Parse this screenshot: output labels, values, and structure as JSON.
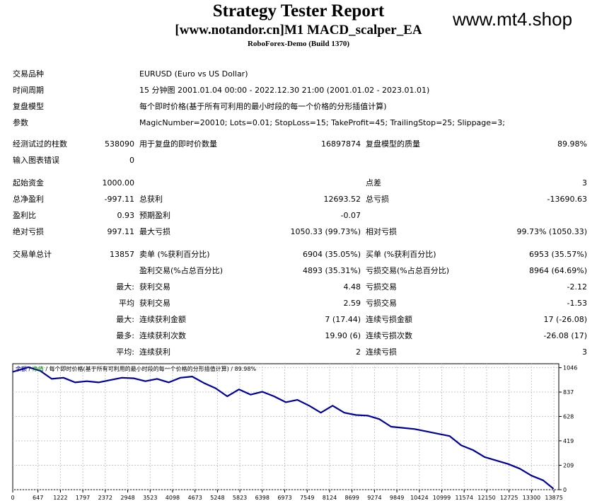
{
  "header": {
    "title": "Strategy Tester Report",
    "subtitle": "[www.notandor.cn]M1 MACD_scalper_EA",
    "server": "RoboForex-Demo (Build 1370)",
    "watermark": "www.mt4.shop"
  },
  "info": {
    "symbol_label": "交易品种",
    "symbol_value": "EURUSD (Euro vs US Dollar)",
    "period_label": "时间周期",
    "period_value": "15 分钟图 2001.01.04 00:00 - 2022.12.30 21:00 (2001.01.02 - 2023.01.01)",
    "model_label": "复盘模型",
    "model_value": "每个即时价格(基于所有可利用的最小时段的每一个价格的分形插值计算)",
    "params_label": "参数",
    "params_value": "MagicNumber=20010; Lots=0.01; StopLoss=15; TakeProfit=45; TrailingStop=25; Slippage=3;"
  },
  "bars": {
    "bars_label": "经测试过的柱数",
    "bars_value": "538090",
    "ticks_label": "用于复盘的即时价数量",
    "ticks_value": "16897874",
    "quality_label": "复盘模型的质量",
    "quality_value": "89.98%",
    "errors_label": "输入图表错误",
    "errors_value": "0"
  },
  "results": {
    "deposit_label": "起始资金",
    "deposit_value": "1000.00",
    "spread_label": "点差",
    "spread_value": "3",
    "net_label": "总净盈利",
    "net_value": "-997.11",
    "gross_profit_label": "总获利",
    "gross_profit_value": "12693.52",
    "gross_loss_label": "总亏损",
    "gross_loss_value": "-13690.63",
    "pf_label": "盈利比",
    "pf_value": "0.93",
    "payoff_label": "预期盈利",
    "payoff_value": "-0.07",
    "abs_dd_label": "绝对亏损",
    "abs_dd_value": "997.11",
    "max_dd_label": "最大亏损",
    "max_dd_value": "1050.33 (99.73%)",
    "rel_dd_label": "相对亏损",
    "rel_dd_value": "99.73% (1050.33)"
  },
  "trades": {
    "total_label": "交易单总计",
    "total_value": "13857",
    "short_label": "卖单 (%获利百分比)",
    "short_value": "6904 (35.05%)",
    "long_label": "买单 (%获利百分比)",
    "long_value": "6953 (35.57%)",
    "profit_trades_label": "盈利交易(%占总百分比)",
    "profit_trades_value": "4893 (35.31%)",
    "loss_trades_label": "亏损交易(%占总百分比)",
    "loss_trades_value": "8964 (64.69%)",
    "largest_label": "最大:",
    "largest_profit_label": "获利交易",
    "largest_profit_value": "4.48",
    "largest_loss_label": "亏损交易",
    "largest_loss_value": "-2.12",
    "average_label": "平均",
    "avg_profit_label": "获利交易",
    "avg_profit_value": "2.59",
    "avg_loss_label": "亏损交易",
    "avg_loss_value": "-1.53",
    "max_label": "最大:",
    "max_cons_wins_label": "连续获利金额",
    "max_cons_wins_value": "7 (17.44)",
    "max_cons_losses_label": "连续亏损金额",
    "max_cons_losses_value": "17 (-26.08)",
    "most_label": "最多:",
    "max_cons_profit_label": "连续获利次数",
    "max_cons_profit_value": "19.90 (6)",
    "max_cons_loss_label": "连续亏损次数",
    "max_cons_loss_value": "-26.08 (17)",
    "avg2_label": "平均:",
    "avg_cons_wins_label": "连续获利",
    "avg_cons_wins_value": "2",
    "avg_cons_losses_label": "连续亏损",
    "avg_cons_losses_value": "3"
  },
  "chart_data": {
    "type": "line",
    "legend_balance": "余额",
    "legend_sep1": " / ",
    "legend_equity": "净值",
    "legend_rest": " / 每个即时价格(基于所有可利用的最小时段的每一个价格的分形插值计算) / 89.98%",
    "line_color": "#0000a0",
    "legend_balance_color": "#0000a0",
    "legend_equity_color": "#008000",
    "grid": true,
    "x_ticks": [
      0,
      647,
      1222,
      1797,
      2372,
      2948,
      3523,
      4098,
      4673,
      5248,
      5823,
      6398,
      6973,
      7549,
      8124,
      8699,
      9274,
      9849,
      10424,
      10999,
      11574,
      12150,
      12725,
      13300,
      13875
    ],
    "y_ticks": [
      0,
      209,
      419,
      628,
      837,
      1046
    ],
    "xlim": [
      0,
      14000
    ],
    "ylim": [
      0,
      1080
    ],
    "series": [
      {
        "x": [
          0,
          400,
          700,
          1000,
          1300,
          1600,
          1900,
          2200,
          2500,
          2800,
          3100,
          3400,
          3700,
          4000,
          4300,
          4600,
          4900,
          5200,
          5500,
          5800,
          6100,
          6400,
          6700,
          7000,
          7300,
          7600,
          7900,
          8200,
          8500,
          8800,
          9100,
          9400,
          9700,
          10000,
          10300,
          10600,
          10900,
          11200,
          11500,
          11800,
          12100,
          12400,
          12700,
          13000,
          13300,
          13600,
          13857
        ],
        "y": [
          1010,
          1050,
          1020,
          950,
          960,
          920,
          930,
          920,
          940,
          960,
          955,
          930,
          950,
          920,
          960,
          970,
          915,
          870,
          800,
          860,
          815,
          840,
          800,
          750,
          770,
          720,
          660,
          720,
          660,
          640,
          635,
          605,
          540,
          530,
          520,
          500,
          480,
          460,
          380,
          340,
          280,
          250,
          220,
          180,
          120,
          80,
          10
        ]
      }
    ]
  }
}
